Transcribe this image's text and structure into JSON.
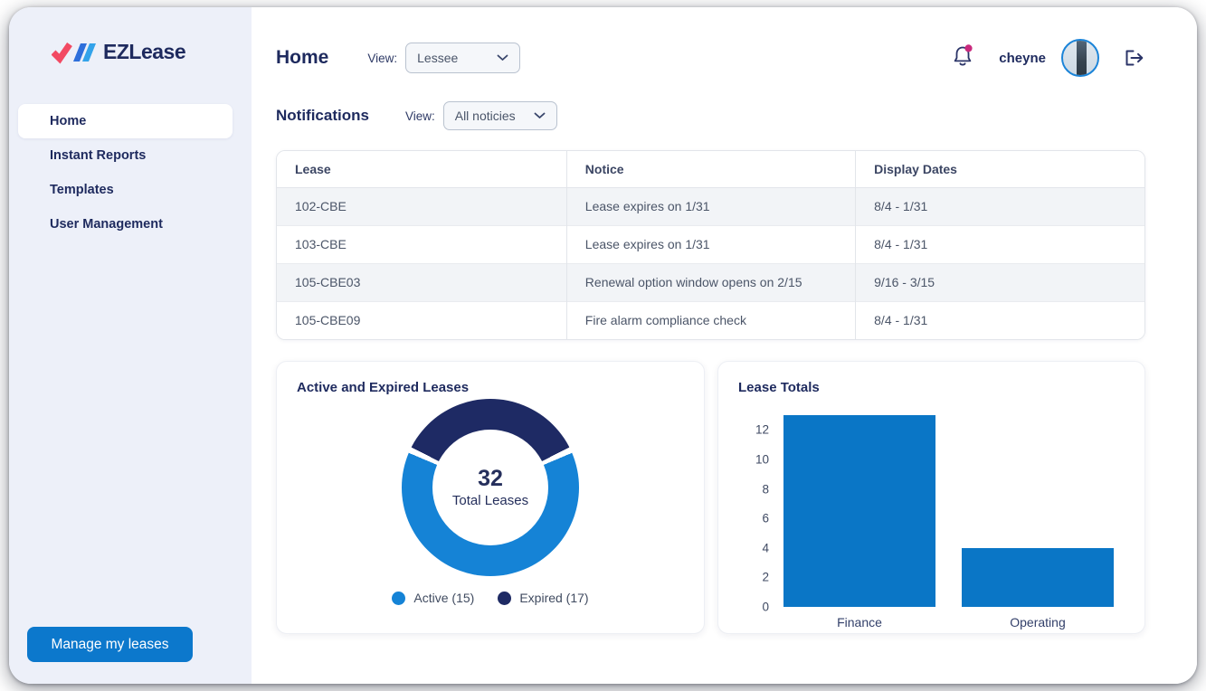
{
  "colors": {
    "navy": "#1e2a5e",
    "accent_blue": "#0c78cc",
    "donut_active_blue": "#1583d6",
    "donut_expired_navy": "#1e2a64",
    "bar_blue": "#0a76c6",
    "notification_dot": "#c92a7d",
    "sidebar_bg": "#edf0f9",
    "row_stripe": "#f2f4f7"
  },
  "brand": {
    "name": "EZLease"
  },
  "sidebar": {
    "items": [
      {
        "label": "Home",
        "active": true
      },
      {
        "label": "Instant Reports",
        "active": false
      },
      {
        "label": "Templates",
        "active": false
      },
      {
        "label": "User Management",
        "active": false
      }
    ],
    "manage_button_label": "Manage my leases"
  },
  "header": {
    "title": "Home",
    "view_label": "View:",
    "view_value": "Lessee",
    "username": "cheyne"
  },
  "notifications": {
    "title": "Notifications",
    "view_label": "View:",
    "view_value": "All noticies",
    "table": {
      "columns": [
        "Lease",
        "Notice",
        "Display Dates"
      ],
      "rows": [
        [
          "102-CBE",
          "Lease expires on 1/31",
          "8/4 - 1/31"
        ],
        [
          "103-CBE",
          "Lease expires on 1/31",
          "8/4 - 1/31"
        ],
        [
          "105-CBE03",
          "Renewal option window opens on 2/15",
          "9/16 - 3/15"
        ],
        [
          "105-CBE09",
          "Fire alarm compliance check",
          "8/4 - 1/31"
        ]
      ]
    }
  },
  "chart_data": [
    {
      "type": "pie",
      "subtype": "donut",
      "title": "Active and Expired Leases",
      "center_value": "32",
      "center_label": "Total Leases",
      "series": [
        {
          "name": "Active",
          "value": 15,
          "color": "#1583d6"
        },
        {
          "name": "Expired",
          "value": 17,
          "color": "#1e2a64"
        }
      ],
      "legend": [
        "Active (15)",
        "Expired (17)"
      ],
      "legend_position": "bottom",
      "visual_expired_arc_deg": 130,
      "segment_gap_deg": 4
    },
    {
      "type": "bar",
      "title": "Lease Totals",
      "categories": [
        "Finance",
        "Operating"
      ],
      "values": [
        13,
        4
      ],
      "yticks": [
        0,
        2,
        4,
        6,
        8,
        10,
        12
      ],
      "ylim": [
        0,
        13
      ],
      "bar_color": "#0a76c6",
      "grid": false,
      "xlabel": "",
      "ylabel": ""
    }
  ]
}
